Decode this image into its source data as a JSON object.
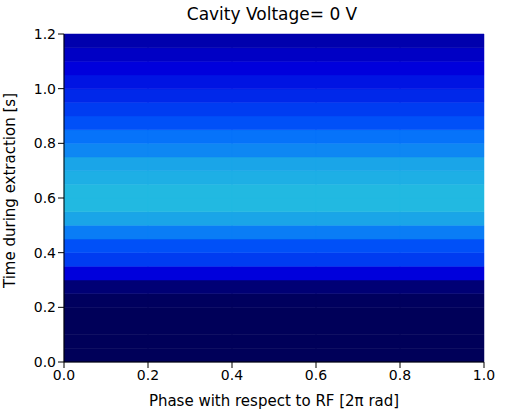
{
  "chart_data": {
    "type": "heatmap",
    "title": "Cavity Voltage= 0 V",
    "x_label": "Phase with respect to RF [2π rad]",
    "y_label": "Time during extraction [s]",
    "xlim": [
      0,
      1
    ],
    "ylim": [
      0,
      1.2
    ],
    "xticks": [
      {
        "value": 0,
        "label": "0.0"
      },
      {
        "value": 0.2,
        "label": "0.2"
      },
      {
        "value": 0.4,
        "label": "0.4"
      },
      {
        "value": 0.6,
        "label": "0.6"
      },
      {
        "value": 0.8,
        "label": "0.8"
      },
      {
        "value": 1,
        "label": "1.0"
      }
    ],
    "yticks": [
      {
        "value": 0,
        "label": "0.0"
      },
      {
        "value": 0.2,
        "label": "0.2"
      },
      {
        "value": 0.4,
        "label": "0.4"
      },
      {
        "value": 0.6,
        "label": "0.6"
      },
      {
        "value": 0.8,
        "label": "0.8"
      },
      {
        "value": 1,
        "label": "1.0"
      },
      {
        "value": 1.2,
        "label": "1.2"
      }
    ],
    "x_bins": [
      0,
      0.2,
      0.4,
      0.6,
      0.8,
      1
    ],
    "y_bins": [
      0,
      0.05,
      0.1,
      0.15,
      0.2,
      0.25,
      0.3,
      0.35,
      0.4,
      0.45,
      0.5,
      0.55,
      0.6,
      0.65,
      0.7,
      0.75,
      0.8,
      0.85,
      0.9,
      0.95,
      1,
      1.05,
      1.1,
      1.15,
      1.2
    ],
    "zlim": [
      0,
      1
    ],
    "cells": [
      [
        0.02,
        0.02,
        0.02,
        0.02,
        0.02
      ],
      [
        0.02,
        0.02,
        0.02,
        0.02,
        0.02
      ],
      [
        0.02,
        0.02,
        0.02,
        0.02,
        0.02
      ],
      [
        0.02,
        0.02,
        0.02,
        0.02,
        0.02
      ],
      [
        0.03,
        0.03,
        0.03,
        0.03,
        0.03
      ],
      [
        0.08,
        0.08,
        0.08,
        0.08,
        0.08
      ],
      [
        0.3,
        0.3,
        0.3,
        0.3,
        0.3
      ],
      [
        0.45,
        0.45,
        0.45,
        0.45,
        0.45
      ],
      [
        0.5,
        0.5,
        0.5,
        0.5,
        0.5
      ],
      [
        0.6,
        0.6,
        0.6,
        0.6,
        0.6
      ],
      [
        0.68,
        0.68,
        0.68,
        0.68,
        0.68
      ],
      [
        0.72,
        0.72,
        0.72,
        0.72,
        0.72
      ],
      [
        0.72,
        0.72,
        0.72,
        0.72,
        0.72
      ],
      [
        0.7,
        0.7,
        0.7,
        0.7,
        0.7
      ],
      [
        0.68,
        0.68,
        0.68,
        0.68,
        0.68
      ],
      [
        0.62,
        0.62,
        0.62,
        0.62,
        0.62
      ],
      [
        0.58,
        0.58,
        0.58,
        0.58,
        0.58
      ],
      [
        0.5,
        0.5,
        0.5,
        0.5,
        0.5
      ],
      [
        0.45,
        0.45,
        0.45,
        0.45,
        0.45
      ],
      [
        0.4,
        0.4,
        0.4,
        0.4,
        0.4
      ],
      [
        0.35,
        0.35,
        0.35,
        0.35,
        0.35
      ],
      [
        0.3,
        0.3,
        0.3,
        0.3,
        0.3
      ],
      [
        0.25,
        0.25,
        0.25,
        0.25,
        0.25
      ],
      [
        0.2,
        0.2,
        0.2,
        0.2,
        0.2
      ]
    ]
  }
}
